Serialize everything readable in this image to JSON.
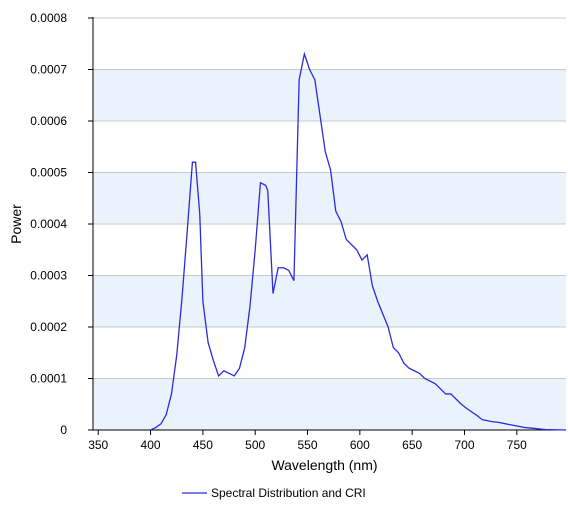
{
  "chart_data": {
    "type": "line",
    "title": "",
    "xlabel": "Wavelength (nm)",
    "ylabel": "Power",
    "xlim": [
      345,
      797
    ],
    "ylim": [
      0,
      0.0008
    ],
    "x_ticks": [
      350,
      400,
      450,
      500,
      550,
      600,
      650,
      700,
      750
    ],
    "y_ticks": [
      0,
      0.0001,
      0.0002,
      0.0003,
      0.0004,
      0.0005,
      0.0006,
      0.0007,
      0.0008
    ],
    "x_tick_labels": [
      "350",
      "400",
      "450",
      "500",
      "550",
      "600",
      "650",
      "700",
      "750"
    ],
    "y_tick_labels": [
      "0",
      "0.0001",
      "0.0002",
      "0.0003",
      "0.0004",
      "0.0005",
      "0.0006",
      "0.0007",
      "0.0008"
    ],
    "grid": true,
    "banded_background": true,
    "legend_position": "bottom-center",
    "colors": {
      "series": "#2b2bdb",
      "band": "#eaf3fc",
      "grid": "#c8c8c8",
      "axis": "#000000"
    },
    "series": [
      {
        "name": "Spectral Distribution and CRI",
        "x": [
          400,
          405,
          410,
          415,
          420,
          425,
          430,
          435,
          440,
          443,
          447,
          450,
          455,
          460,
          465,
          470,
          475,
          480,
          485,
          490,
          495,
          500,
          505,
          510,
          512,
          517,
          522,
          527,
          532,
          537,
          542,
          547,
          552,
          557,
          562,
          567,
          572,
          577,
          582,
          587,
          592,
          597,
          602,
          607,
          612,
          617,
          622,
          627,
          632,
          637,
          642,
          647,
          652,
          657,
          662,
          667,
          672,
          677,
          682,
          687,
          692,
          697,
          702,
          707,
          712,
          717,
          722,
          727,
          732,
          737,
          742,
          747,
          752,
          757,
          762,
          767,
          772,
          777,
          782,
          787,
          792,
          797
        ],
        "values": [
          0.0,
          5e-06,
          1.2e-05,
          3e-05,
          7e-05,
          0.000145,
          0.000255,
          0.000385,
          0.00052,
          0.00052,
          0.00042,
          0.00025,
          0.00017,
          0.000135,
          0.000105,
          0.000115,
          0.00011,
          0.000105,
          0.00012,
          0.00016,
          0.00024,
          0.00035,
          0.00048,
          0.000475,
          0.000465,
          0.000265,
          0.000315,
          0.000315,
          0.00031,
          0.00029,
          0.00068,
          0.00073,
          0.0007,
          0.00068,
          0.00061,
          0.00054,
          0.000505,
          0.000425,
          0.000405,
          0.00037,
          0.00036,
          0.00035,
          0.00033,
          0.00034,
          0.00028,
          0.00025,
          0.000225,
          0.0002,
          0.00016,
          0.00015,
          0.00013,
          0.00012,
          0.000115,
          0.00011,
          0.0001,
          9.5e-05,
          9e-05,
          8e-05,
          7e-05,
          7e-05,
          6e-05,
          5e-05,
          4.2e-05,
          3.5e-05,
          2.8e-05,
          2e-05,
          1.8e-05,
          1.6e-05,
          1.5e-05,
          1.3e-05,
          1.1e-05,
          9e-06,
          7e-06,
          5e-06,
          4e-06,
          3e-06,
          2e-06,
          1e-06,
          8e-07,
          5e-07,
          2e-07,
          0.0
        ]
      }
    ]
  }
}
